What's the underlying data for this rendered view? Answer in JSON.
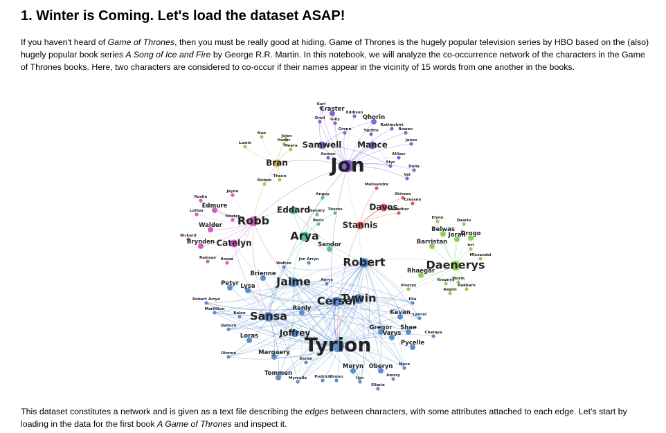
{
  "heading": "1. Winter is Coming. Let's load the dataset ASAP!",
  "intro": {
    "before_got": "If you haven't heard of ",
    "got_italic": "Game of Thrones",
    "after_got": ", then you must be really good at hiding. Game of Thrones is the hugely popular television series by HBO based on the (also) hugely popular book series ",
    "asoiaf_italic": "A Song of Ice and Fire",
    "after_asoiaf": " by George R.R. Martin. In this notebook, we will analyze the co-occurrence network of the characters in the Game of Thrones books. Here, two characters are considered to co-occur if their names appear in the vicinity of 15 words from one another in the books."
  },
  "outro": {
    "before_edges": "This dataset constitutes a network and is given as a text file describing the ",
    "edges_italic": "edges",
    "middle": " between characters, with some attributes attached to each edge. Let's start by loading in the data for the first book ",
    "book_italic": "A Game of Thrones",
    "after_book": " and inspect it."
  },
  "network": {
    "colors": {
      "purple": "#8a63d2",
      "yellow": "#c9b84a",
      "pink": "#d65dc0",
      "teal": "#55c49a",
      "green": "#8ccf5a",
      "blue": "#5a8fd0",
      "red": "#e05a5a",
      "edge": "#b8c6e0"
    },
    "nodes": [
      {
        "label": "Jon",
        "cluster": "purple",
        "size": "huge"
      },
      {
        "label": "Samwell",
        "cluster": "purple",
        "size": "medium"
      },
      {
        "label": "Mance",
        "cluster": "purple",
        "size": "medium"
      },
      {
        "label": "Aemon",
        "cluster": "purple",
        "size": "tiny"
      },
      {
        "label": "Craster",
        "cluster": "purple",
        "size": "small"
      },
      {
        "label": "Karl",
        "cluster": "purple",
        "size": "tiny"
      },
      {
        "label": "Orell",
        "cluster": "purple",
        "size": "tiny"
      },
      {
        "label": "Gilly",
        "cluster": "purple",
        "size": "tiny"
      },
      {
        "label": "Eddison",
        "cluster": "purple",
        "size": "tiny"
      },
      {
        "label": "Qhorin",
        "cluster": "purple",
        "size": "small"
      },
      {
        "label": "Rattleshirt",
        "cluster": "purple",
        "size": "tiny"
      },
      {
        "label": "Grenn",
        "cluster": "purple",
        "size": "tiny"
      },
      {
        "label": "Ygritte",
        "cluster": "purple",
        "size": "tiny"
      },
      {
        "label": "Bowen",
        "cluster": "purple",
        "size": "tiny"
      },
      {
        "label": "Janos",
        "cluster": "purple",
        "size": "tiny"
      },
      {
        "label": "Alliser",
        "cluster": "purple",
        "size": "tiny"
      },
      {
        "label": "Styr",
        "cluster": "purple",
        "size": "tiny"
      },
      {
        "label": "Dalla",
        "cluster": "purple",
        "size": "tiny"
      },
      {
        "label": "Val",
        "cluster": "purple",
        "size": "tiny"
      },
      {
        "label": "Nan",
        "cluster": "yellow",
        "size": "tiny"
      },
      {
        "label": "Luwin",
        "cluster": "yellow",
        "size": "tiny"
      },
      {
        "label": "Jojen",
        "cluster": "yellow",
        "size": "tiny"
      },
      {
        "label": "Hodor",
        "cluster": "yellow",
        "size": "tiny"
      },
      {
        "label": "Meera",
        "cluster": "yellow",
        "size": "tiny"
      },
      {
        "label": "Bran",
        "cluster": "yellow",
        "size": "medium"
      },
      {
        "label": "Theon",
        "cluster": "yellow",
        "size": "tiny"
      },
      {
        "label": "Rickon",
        "cluster": "yellow",
        "size": "tiny"
      },
      {
        "label": "Melisandre",
        "cluster": "red",
        "size": "tiny"
      },
      {
        "label": "Shireen",
        "cluster": "red",
        "size": "tiny"
      },
      {
        "label": "Cressen",
        "cluster": "red",
        "size": "tiny"
      },
      {
        "label": "Davos",
        "cluster": "red",
        "size": "medium"
      },
      {
        "label": "Salladhor",
        "cluster": "red",
        "size": "tiny"
      },
      {
        "label": "Stannis",
        "cluster": "red",
        "size": "medium"
      },
      {
        "label": "Jeyne",
        "cluster": "pink",
        "size": "tiny"
      },
      {
        "label": "Roslin",
        "cluster": "pink",
        "size": "tiny"
      },
      {
        "label": "Edmure",
        "cluster": "pink",
        "size": "small"
      },
      {
        "label": "Lothar",
        "cluster": "pink",
        "size": "tiny"
      },
      {
        "label": "Hoster",
        "cluster": "pink",
        "size": "tiny"
      },
      {
        "label": "Robb",
        "cluster": "pink",
        "size": "large"
      },
      {
        "label": "Walder",
        "cluster": "pink",
        "size": "small"
      },
      {
        "label": "Rickard",
        "cluster": "pink",
        "size": "tiny"
      },
      {
        "label": "Catelyn",
        "cluster": "pink",
        "size": "medium"
      },
      {
        "label": "Brynden",
        "cluster": "pink",
        "size": "small"
      },
      {
        "label": "Ramsay",
        "cluster": "pink",
        "size": "tiny"
      },
      {
        "label": "Roose",
        "cluster": "pink",
        "size": "tiny"
      },
      {
        "label": "Eddard",
        "cluster": "teal",
        "size": "medium"
      },
      {
        "label": "Gendry",
        "cluster": "teal",
        "size": "tiny"
      },
      {
        "label": "Thoros",
        "cluster": "teal",
        "size": "tiny"
      },
      {
        "label": "Anguy",
        "cluster": "teal",
        "size": "tiny"
      },
      {
        "label": "Beric",
        "cluster": "teal",
        "size": "tiny"
      },
      {
        "label": "Arya",
        "cluster": "teal",
        "size": "large"
      },
      {
        "label": "Sandor",
        "cluster": "teal",
        "size": "small"
      },
      {
        "label": "Elyno",
        "cluster": "green",
        "size": "tiny"
      },
      {
        "label": "Daario",
        "cluster": "green",
        "size": "tiny"
      },
      {
        "label": "Belwas",
        "cluster": "green",
        "size": "small"
      },
      {
        "label": "Jorah",
        "cluster": "green",
        "size": "small"
      },
      {
        "label": "Drogo",
        "cluster": "green",
        "size": "small"
      },
      {
        "label": "Barristan",
        "cluster": "green",
        "size": "small"
      },
      {
        "label": "Irri",
        "cluster": "green",
        "size": "tiny"
      },
      {
        "label": "Missandei",
        "cluster": "green",
        "size": "tiny"
      },
      {
        "label": "Daenerys",
        "cluster": "green",
        "size": "large"
      },
      {
        "label": "Rhaegar",
        "cluster": "green",
        "size": "small"
      },
      {
        "label": "Worm",
        "cluster": "green",
        "size": "tiny"
      },
      {
        "label": "Kraznys",
        "cluster": "green",
        "size": "tiny"
      },
      {
        "label": "Rakharo",
        "cluster": "green",
        "size": "tiny"
      },
      {
        "label": "Aegon",
        "cluster": "green",
        "size": "tiny"
      },
      {
        "label": "Viserys",
        "cluster": "green",
        "size": "tiny"
      },
      {
        "label": "Robert",
        "cluster": "blue",
        "size": "large"
      },
      {
        "label": "Jon Arryn",
        "cluster": "blue",
        "size": "tiny"
      },
      {
        "label": "Walton",
        "cluster": "blue",
        "size": "tiny"
      },
      {
        "label": "Brienne",
        "cluster": "blue",
        "size": "small"
      },
      {
        "label": "Jaime",
        "cluster": "blue",
        "size": "large"
      },
      {
        "label": "Aerys",
        "cluster": "blue",
        "size": "tiny"
      },
      {
        "label": "Petyr",
        "cluster": "blue",
        "size": "small"
      },
      {
        "label": "Lysa",
        "cluster": "blue",
        "size": "small"
      },
      {
        "label": "Cersei",
        "cluster": "blue",
        "size": "large"
      },
      {
        "label": "Tywin",
        "cluster": "blue",
        "size": "large"
      },
      {
        "label": "Elia",
        "cluster": "blue",
        "size": "tiny"
      },
      {
        "label": "Robert Arryn",
        "cluster": "blue",
        "size": "tiny"
      },
      {
        "label": "Mariillion",
        "cluster": "blue",
        "size": "tiny"
      },
      {
        "label": "Balon",
        "cluster": "blue",
        "size": "tiny"
      },
      {
        "label": "Sansa",
        "cluster": "blue",
        "size": "large"
      },
      {
        "label": "Renly",
        "cluster": "blue",
        "size": "small"
      },
      {
        "label": "Kevan",
        "cluster": "blue",
        "size": "small"
      },
      {
        "label": "Lancel",
        "cluster": "blue",
        "size": "tiny"
      },
      {
        "label": "Qyburn",
        "cluster": "blue",
        "size": "tiny"
      },
      {
        "label": "Joffrey",
        "cluster": "blue",
        "size": "medium"
      },
      {
        "label": "Gregor",
        "cluster": "blue",
        "size": "small"
      },
      {
        "label": "Shae",
        "cluster": "blue",
        "size": "small"
      },
      {
        "label": "Varys",
        "cluster": "blue",
        "size": "small"
      },
      {
        "label": "Chataya",
        "cluster": "blue",
        "size": "tiny"
      },
      {
        "label": "Loras",
        "cluster": "blue",
        "size": "small"
      },
      {
        "label": "Tyrion",
        "cluster": "blue",
        "size": "huge"
      },
      {
        "label": "Pycelle",
        "cluster": "blue",
        "size": "small"
      },
      {
        "label": "Olenna",
        "cluster": "blue",
        "size": "tiny"
      },
      {
        "label": "Margaery",
        "cluster": "blue",
        "size": "small"
      },
      {
        "label": "Doran",
        "cluster": "blue",
        "size": "tiny"
      },
      {
        "label": "Mace",
        "cluster": "blue",
        "size": "tiny"
      },
      {
        "label": "Meryn",
        "cluster": "blue",
        "size": "small"
      },
      {
        "label": "Oberyn",
        "cluster": "blue",
        "size": "small"
      },
      {
        "label": "Tommen",
        "cluster": "blue",
        "size": "small"
      },
      {
        "label": "Amory",
        "cluster": "blue",
        "size": "tiny"
      },
      {
        "label": "Myrcella",
        "cluster": "blue",
        "size": "tiny"
      },
      {
        "label": "Podrick",
        "cluster": "blue",
        "size": "tiny"
      },
      {
        "label": "Bronn",
        "cluster": "blue",
        "size": "tiny"
      },
      {
        "label": "Ilyn",
        "cluster": "blue",
        "size": "tiny"
      },
      {
        "label": "Ellaria",
        "cluster": "blue",
        "size": "tiny"
      }
    ]
  }
}
